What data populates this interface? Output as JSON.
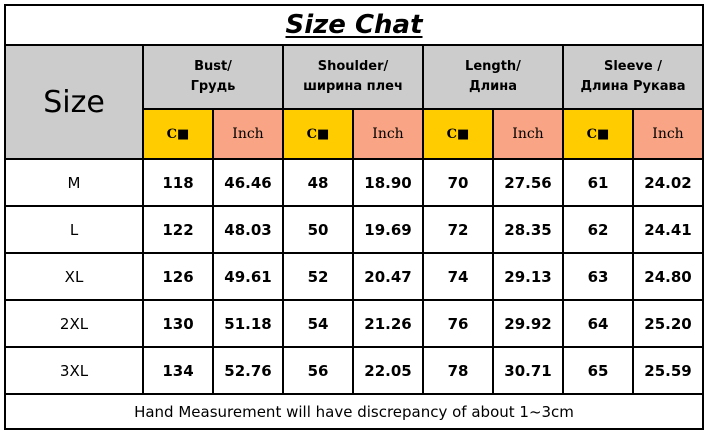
{
  "title": "Size Chat",
  "size_header": "Size",
  "groups": [
    {
      "line1": "Bust/",
      "line2": "Грудь"
    },
    {
      "line1": "Shoulder/",
      "line2": "ширина плеч"
    },
    {
      "line1": "Length/",
      "line2": "Длина"
    },
    {
      "line1": "Sleeve /",
      "line2": "Длина Рукава"
    }
  ],
  "units": {
    "cm": "C■",
    "inch": "Inch"
  },
  "colors": {
    "header_gray": "#cccccc",
    "cm_yellow": "#ffcc00",
    "inch_salmon": "#f9a585"
  },
  "rows": [
    {
      "size": "M",
      "v": [
        "118",
        "46.46",
        "48",
        "18.90",
        "70",
        "27.56",
        "61",
        "24.02"
      ]
    },
    {
      "size": "L",
      "v": [
        "122",
        "48.03",
        "50",
        "19.69",
        "72",
        "28.35",
        "62",
        "24.41"
      ]
    },
    {
      "size": "XL",
      "v": [
        "126",
        "49.61",
        "52",
        "20.47",
        "74",
        "29.13",
        "63",
        "24.80"
      ]
    },
    {
      "size": "2XL",
      "v": [
        "130",
        "51.18",
        "54",
        "21.26",
        "76",
        "29.92",
        "64",
        "25.20"
      ]
    },
    {
      "size": "3XL",
      "v": [
        "134",
        "52.76",
        "56",
        "22.05",
        "78",
        "30.71",
        "65",
        "25.59"
      ]
    }
  ],
  "footer": "Hand Measurement will have discrepancy of about 1~3cm"
}
